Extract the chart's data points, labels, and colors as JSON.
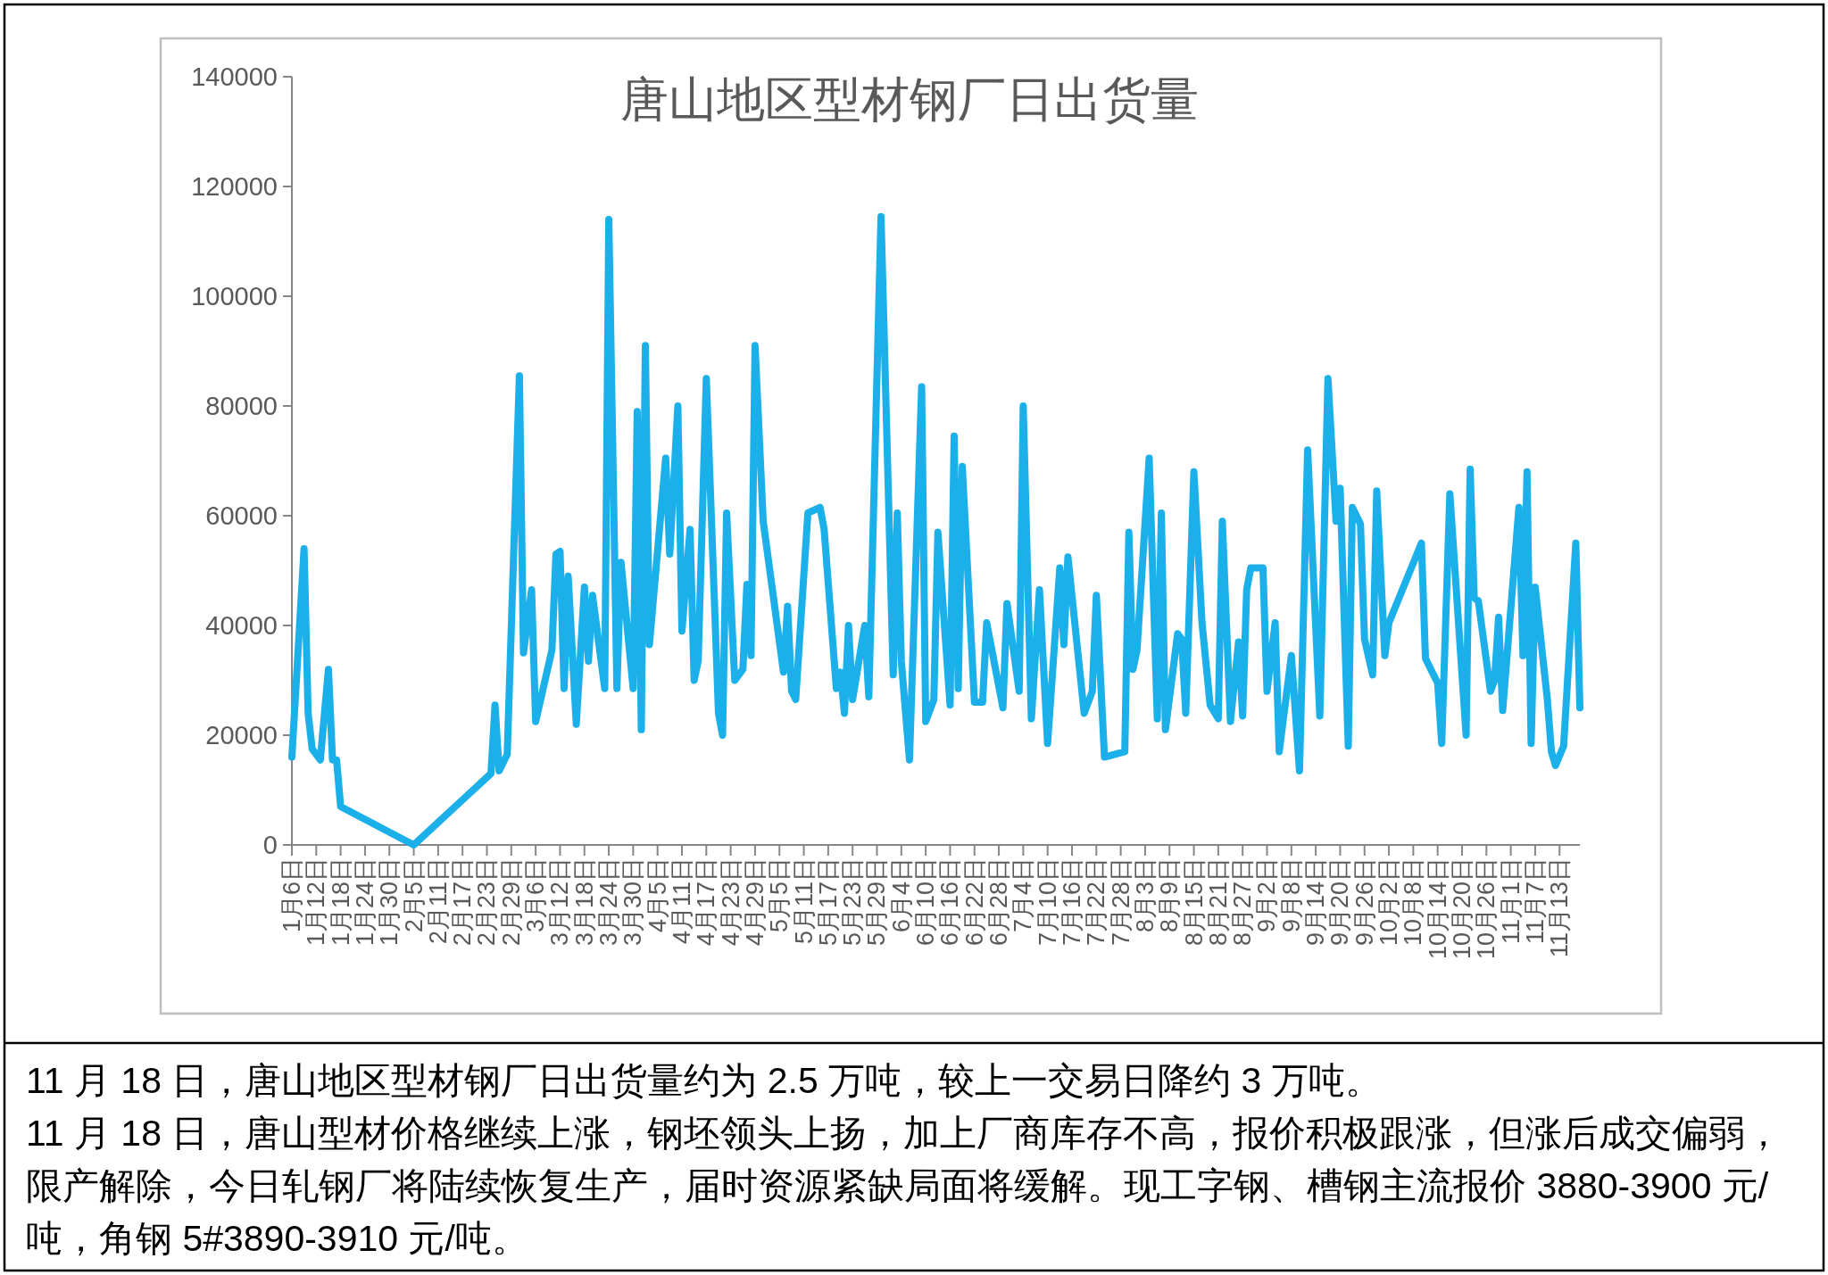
{
  "chart_data": {
    "type": "line",
    "title": "唐山地区型材钢厂日出货量",
    "color": "#1cb0ea",
    "x": [
      "--01-06",
      "--01-09",
      "--01-10",
      "--01-11",
      "--01-13",
      "--01-15",
      "--01-16",
      "--01-17",
      "--01-18",
      "--02-05",
      "--02-24",
      "--02-25",
      "--02-26",
      "--02-28",
      "--03-02",
      "--03-03",
      "--03-05",
      "--03-06",
      "--03-10",
      "--03-11",
      "--03-12",
      "--03-13",
      "--03-14",
      "--03-16",
      "--03-18",
      "--03-19",
      "--03-20",
      "--03-23",
      "--03-24",
      "--03-26",
      "--03-27",
      "--03-30",
      "--03-31",
      "--04-01",
      "--04-02",
      "--04-03",
      "--04-07",
      "--04-08",
      "--04-10",
      "--04-11",
      "--04-13",
      "--04-14",
      "--04-15",
      "--04-17",
      "--04-20",
      "--04-21",
      "--04-22",
      "--04-24",
      "--04-26",
      "--04-27",
      "--04-28",
      "--04-29",
      "--05-01",
      "--05-03",
      "--05-06",
      "--05-07",
      "--05-08",
      "--05-09",
      "--05-12",
      "--05-15",
      "--05-16",
      "--05-19",
      "--05-20",
      "--05-21",
      "--05-22",
      "--05-23",
      "--05-26",
      "--05-27",
      "--05-30",
      "--06-02",
      "--06-03",
      "--06-04",
      "--06-06",
      "--06-09",
      "--06-10",
      "--06-12",
      "--06-13",
      "--06-16",
      "--06-17",
      "--06-18",
      "--06-19",
      "--06-22",
      "--06-24",
      "--06-25",
      "--06-29",
      "--06-30",
      "--07-03",
      "--07-04",
      "--07-06",
      "--07-08",
      "--07-10",
      "--07-13",
      "--07-14",
      "--07-15",
      "--07-19",
      "--07-21",
      "--07-22",
      "--07-24",
      "--07-29",
      "--07-30",
      "--07-31",
      "--08-01",
      "--08-04",
      "--08-06",
      "--08-07",
      "--08-08",
      "--08-11",
      "--08-12",
      "--08-13",
      "--08-15",
      "--08-17",
      "--08-19",
      "--08-21",
      "--08-22",
      "--08-24",
      "--08-26",
      "--08-27",
      "--08-28",
      "--08-29",
      "--09-01",
      "--09-02",
      "--09-04",
      "--09-05",
      "--09-08",
      "--09-10",
      "--09-12",
      "--09-15",
      "--09-17",
      "--09-19",
      "--09-20",
      "--09-22",
      "--09-23",
      "--09-25",
      "--09-26",
      "--09-28",
      "--09-29",
      "--10-01",
      "--10-02",
      "--10-10",
      "--10-11",
      "--10-14",
      "--10-15",
      "--10-17",
      "--10-21",
      "--10-22",
      "--10-23",
      "--10-24",
      "--10-27",
      "--10-28",
      "--10-29",
      "--10-30",
      "--11-03",
      "--11-04",
      "--11-05",
      "--11-06",
      "--11-07",
      "--11-10",
      "--11-11",
      "--11-12",
      "--11-14",
      "--11-17",
      "--11-18"
    ],
    "values": [
      16000,
      54000,
      24000,
      17500,
      15500,
      32000,
      15500,
      15500,
      7000,
      0,
      13000,
      25500,
      13500,
      16500,
      85500,
      35000,
      46500,
      22500,
      35500,
      53000,
      53500,
      28500,
      49000,
      22000,
      47000,
      33500,
      45500,
      28500,
      114000,
      28500,
      51500,
      28500,
      79000,
      21000,
      91000,
      36500,
      70500,
      53000,
      80000,
      39000,
      57500,
      30000,
      33500,
      85000,
      24000,
      20000,
      60500,
      30000,
      32000,
      47500,
      34500,
      91000,
      59000,
      48000,
      31500,
      43500,
      28000,
      26500,
      60500,
      61500,
      57500,
      28500,
      31500,
      24000,
      40000,
      26500,
      40000,
      27000,
      114500,
      31000,
      60500,
      33500,
      15500,
      83500,
      22500,
      26500,
      57000,
      25500,
      74500,
      28500,
      69000,
      26000,
      26000,
      40500,
      25000,
      44000,
      28000,
      80000,
      23000,
      46500,
      18500,
      50500,
      36500,
      52500,
      24000,
      28000,
      45500,
      16000,
      17000,
      57000,
      32000,
      35500,
      70500,
      23000,
      60500,
      21000,
      38500,
      37500,
      24000,
      68000,
      40500,
      25500,
      23000,
      59000,
      22500,
      37000,
      23500,
      46500,
      50500,
      50500,
      28000,
      40500,
      17000,
      34500,
      13500,
      72000,
      23500,
      85000,
      59000,
      65000,
      18000,
      61500,
      58500,
      37500,
      31000,
      64500,
      34500,
      40500,
      55000,
      34000,
      29500,
      18500,
      64000,
      20000,
      68500,
      45000,
      44500,
      28000,
      30000,
      41500,
      24500,
      61500,
      34500,
      68000,
      18500,
      47000,
      26500,
      17000,
      14500,
      18000,
      55000,
      25000
    ],
    "xlim": [
      "--01-06",
      "--11-18"
    ],
    "ylim": [
      0,
      140000
    ],
    "yticks": [
      0,
      20000,
      40000,
      60000,
      80000,
      100000,
      120000,
      140000
    ],
    "xticks": [
      {
        "value": "--01-06",
        "label": "1月6日"
      },
      {
        "value": "--01-12",
        "label": "1月12日"
      },
      {
        "value": "--01-18",
        "label": "1月18日"
      },
      {
        "value": "--01-24",
        "label": "1月24日"
      },
      {
        "value": "--01-30",
        "label": "1月30日"
      },
      {
        "value": "--02-05",
        "label": "2月5日"
      },
      {
        "value": "--02-11",
        "label": "2月11日"
      },
      {
        "value": "--02-17",
        "label": "2月17日"
      },
      {
        "value": "--02-23",
        "label": "2月23日"
      },
      {
        "value": "--02-29",
        "label": "2月29日"
      },
      {
        "value": "--03-06",
        "label": "3月6日"
      },
      {
        "value": "--03-12",
        "label": "3月12日"
      },
      {
        "value": "--03-18",
        "label": "3月18日"
      },
      {
        "value": "--03-24",
        "label": "3月24日"
      },
      {
        "value": "--03-30",
        "label": "3月30日"
      },
      {
        "value": "--04-05",
        "label": "4月5日"
      },
      {
        "value": "--04-11",
        "label": "4月11日"
      },
      {
        "value": "--04-17",
        "label": "4月17日"
      },
      {
        "value": "--04-23",
        "label": "4月23日"
      },
      {
        "value": "--04-29",
        "label": "4月29日"
      },
      {
        "value": "--05-05",
        "label": "5月5日"
      },
      {
        "value": "--05-11",
        "label": "5月11日"
      },
      {
        "value": "--05-17",
        "label": "5月17日"
      },
      {
        "value": "--05-23",
        "label": "5月23日"
      },
      {
        "value": "--05-29",
        "label": "5月29日"
      },
      {
        "value": "--06-04",
        "label": "6月4日"
      },
      {
        "value": "--06-10",
        "label": "6月10日"
      },
      {
        "value": "--06-16",
        "label": "6月16日"
      },
      {
        "value": "--06-22",
        "label": "6月22日"
      },
      {
        "value": "--06-28",
        "label": "6月28日"
      },
      {
        "value": "--07-04",
        "label": "7月4日"
      },
      {
        "value": "--07-10",
        "label": "7月10日"
      },
      {
        "value": "--07-16",
        "label": "7月16日"
      },
      {
        "value": "--07-22",
        "label": "7月22日"
      },
      {
        "value": "--07-28",
        "label": "7月28日"
      },
      {
        "value": "--08-03",
        "label": "8月3日"
      },
      {
        "value": "--08-09",
        "label": "8月9日"
      },
      {
        "value": "--08-15",
        "label": "8月15日"
      },
      {
        "value": "--08-21",
        "label": "8月21日"
      },
      {
        "value": "--08-27",
        "label": "8月27日"
      },
      {
        "value": "--09-02",
        "label": "9月2日"
      },
      {
        "value": "--09-08",
        "label": "9月8日"
      },
      {
        "value": "--09-14",
        "label": "9月14日"
      },
      {
        "value": "--09-20",
        "label": "9月20日"
      },
      {
        "value": "--09-26",
        "label": "9月26日"
      },
      {
        "value": "--10-02",
        "label": "10月2日"
      },
      {
        "value": "--10-08",
        "label": "10月8日"
      },
      {
        "value": "--10-14",
        "label": "10月14日"
      },
      {
        "value": "--10-20",
        "label": "10月20日"
      },
      {
        "value": "--10-26",
        "label": "10月26日"
      },
      {
        "value": "--11-01",
        "label": "11月1日"
      },
      {
        "value": "--11-07",
        "label": "11月7日"
      },
      {
        "value": "--11-13",
        "label": "11月13日"
      }
    ],
    "annotations": [
      "11 月 18 日，唐山地区型材钢厂日出货量约为 2.5 万吨，较上一交易日降约 3 万吨。",
      "11 月 18 日，唐山型材价格继续上涨，钢坯领头上扬，加上厂商库存不高，报价积极跟涨，但涨后成交偏弱，限产解除，今日轧钢厂将陆续恢复生产，届时资源紧缺局面将缓解。现工字钢、槽钢主流报价 3880-3900 元/吨，角钢 5#3890-3910 元/吨。"
    ]
  }
}
